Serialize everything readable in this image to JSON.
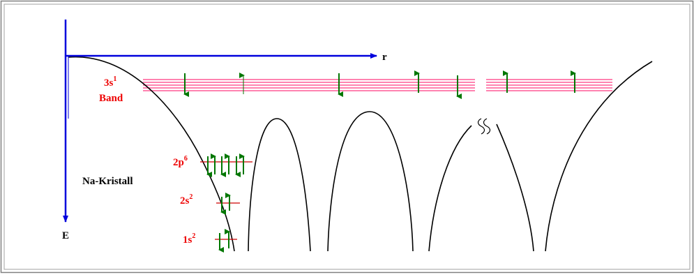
{
  "labels": {
    "axis_r": "r",
    "axis_e": "E",
    "band_3s": "3s",
    "band_3s_sup": "1",
    "band_word": "Band",
    "level_2p": "2p",
    "level_2p_sup": "6",
    "level_2s": "2s",
    "level_2s_sup": "2",
    "level_1s": "1s",
    "level_1s_sup": "2",
    "crystal": "Na-Kristall"
  },
  "colors": {
    "axis": "#0000dd",
    "band": "#ff5a96",
    "electron": "#007700",
    "level_line": "#cc0000",
    "label_red": "#ee0000",
    "label_black": "#000000",
    "curve": "#000000"
  }
}
